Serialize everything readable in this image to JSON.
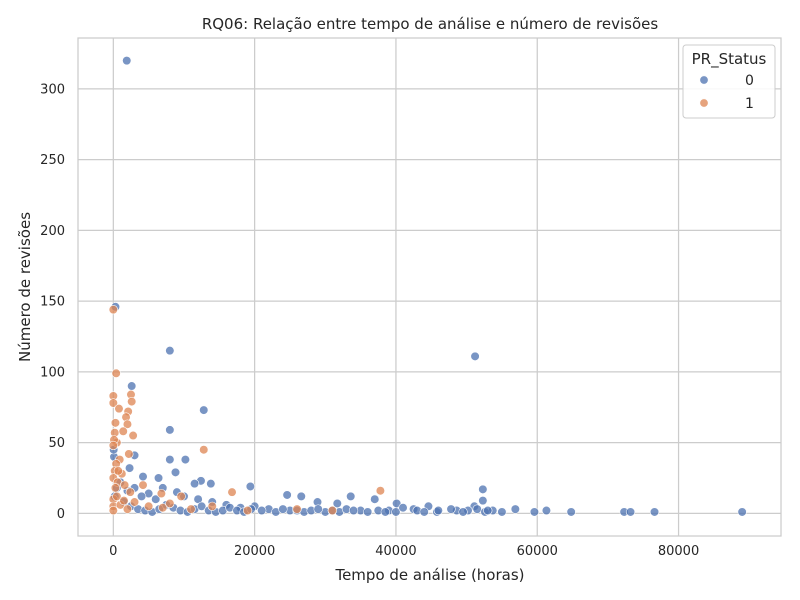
{
  "chart_data": {
    "type": "scatter",
    "title": "RQ06: Relação entre tempo de análise e número de revisões",
    "xlabel": "Tempo de análise (horas)",
    "ylabel": "Número de revisões",
    "xlim": [
      -5000,
      94500
    ],
    "ylim": [
      -16,
      336
    ],
    "xticks": [
      0,
      20000,
      40000,
      60000,
      80000
    ],
    "yticks": [
      0,
      50,
      100,
      150,
      200,
      250,
      300
    ],
    "grid": true,
    "legend": {
      "title": "PR_Status",
      "placement": "top-right"
    },
    "series": [
      {
        "name": "0",
        "color": "#4c72b0",
        "points": [
          [
            1900,
            320
          ],
          [
            300,
            146
          ],
          [
            8000,
            115
          ],
          [
            51200,
            111
          ],
          [
            12800,
            73
          ],
          [
            8000,
            59
          ],
          [
            2600,
            90
          ],
          [
            3000,
            41
          ],
          [
            8000,
            38
          ],
          [
            10200,
            38
          ],
          [
            2300,
            32
          ],
          [
            8800,
            29
          ],
          [
            12400,
            23
          ],
          [
            19400,
            19
          ],
          [
            13800,
            21
          ],
          [
            11500,
            21
          ],
          [
            6400,
            25
          ],
          [
            4200,
            26
          ],
          [
            52300,
            17
          ],
          [
            24600,
            13
          ],
          [
            26600,
            12
          ],
          [
            33600,
            12
          ],
          [
            37000,
            10
          ],
          [
            31700,
            7
          ],
          [
            28900,
            8
          ],
          [
            40100,
            7
          ],
          [
            44600,
            5
          ],
          [
            52300,
            9
          ],
          [
            51100,
            5
          ],
          [
            56900,
            3
          ],
          [
            59600,
            1
          ],
          [
            61300,
            2
          ],
          [
            64800,
            1
          ],
          [
            72300,
            1
          ],
          [
            73200,
            1
          ],
          [
            76600,
            1
          ],
          [
            89000,
            1
          ],
          [
            48600,
            2
          ],
          [
            50200,
            2
          ],
          [
            47800,
            3
          ],
          [
            45800,
            1
          ],
          [
            53700,
            2
          ],
          [
            55000,
            1
          ],
          [
            42500,
            3
          ],
          [
            39000,
            2
          ],
          [
            35000,
            2
          ],
          [
            30000,
            1
          ],
          [
            25000,
            2
          ],
          [
            22000,
            3
          ],
          [
            20000,
            5
          ],
          [
            18000,
            4
          ],
          [
            16000,
            6
          ],
          [
            14000,
            8
          ],
          [
            12000,
            10
          ],
          [
            10000,
            12
          ],
          [
            9000,
            15
          ],
          [
            7000,
            18
          ],
          [
            6000,
            10
          ],
          [
            5000,
            14
          ],
          [
            4000,
            12
          ],
          [
            3000,
            18
          ],
          [
            2000,
            16
          ],
          [
            1000,
            22
          ],
          [
            500,
            18
          ],
          [
            200,
            12
          ],
          [
            100,
            40
          ],
          [
            50,
            45
          ],
          [
            1500,
            8
          ],
          [
            2500,
            5
          ],
          [
            3500,
            3
          ],
          [
            4500,
            2
          ],
          [
            5500,
            1
          ],
          [
            6500,
            3
          ],
          [
            7500,
            6
          ],
          [
            8500,
            4
          ],
          [
            9500,
            2
          ],
          [
            10500,
            1
          ],
          [
            11500,
            3
          ],
          [
            12500,
            5
          ],
          [
            13500,
            2
          ],
          [
            14500,
            1
          ],
          [
            15500,
            2
          ],
          [
            16500,
            4
          ],
          [
            17500,
            2
          ],
          [
            18500,
            1
          ],
          [
            19500,
            3
          ],
          [
            21000,
            2
          ],
          [
            23000,
            1
          ],
          [
            24000,
            3
          ],
          [
            26000,
            2
          ],
          [
            27000,
            1
          ],
          [
            28000,
            2
          ],
          [
            29000,
            3
          ],
          [
            31000,
            2
          ],
          [
            32000,
            1
          ],
          [
            33000,
            3
          ],
          [
            34000,
            2
          ],
          [
            36000,
            1
          ],
          [
            37500,
            2
          ],
          [
            38500,
            1
          ],
          [
            40000,
            1
          ],
          [
            41000,
            4
          ],
          [
            43000,
            2
          ],
          [
            44000,
            1
          ],
          [
            46000,
            2
          ],
          [
            49500,
            1
          ],
          [
            51500,
            3
          ],
          [
            52600,
            1
          ],
          [
            53000,
            2
          ]
        ]
      },
      {
        "name": "1",
        "color": "#dd8452",
        "points": [
          [
            0,
            144
          ],
          [
            400,
            99
          ],
          [
            2500,
            84
          ],
          [
            2600,
            79
          ],
          [
            0,
            83
          ],
          [
            0,
            78
          ],
          [
            800,
            74
          ],
          [
            2100,
            72
          ],
          [
            1800,
            68
          ],
          [
            2000,
            63
          ],
          [
            300,
            64
          ],
          [
            200,
            57
          ],
          [
            1400,
            58
          ],
          [
            2800,
            55
          ],
          [
            500,
            50
          ],
          [
            100,
            52
          ],
          [
            0,
            48
          ],
          [
            12800,
            45
          ],
          [
            2200,
            42
          ],
          [
            900,
            38
          ],
          [
            400,
            35
          ],
          [
            200,
            30
          ],
          [
            1200,
            28
          ],
          [
            0,
            25
          ],
          [
            600,
            22
          ],
          [
            1600,
            20
          ],
          [
            300,
            18
          ],
          [
            2400,
            15
          ],
          [
            4200,
            20
          ],
          [
            6800,
            14
          ],
          [
            9600,
            12
          ],
          [
            16800,
            15
          ],
          [
            37800,
            16
          ],
          [
            0,
            10
          ],
          [
            0,
            5
          ],
          [
            0,
            2
          ],
          [
            1000,
            6
          ],
          [
            2000,
            3
          ],
          [
            3000,
            8
          ],
          [
            5000,
            5
          ],
          [
            7000,
            4
          ],
          [
            8000,
            7
          ],
          [
            11000,
            3
          ],
          [
            14000,
            5
          ],
          [
            19000,
            2
          ],
          [
            26000,
            3
          ],
          [
            31000,
            2
          ],
          [
            500,
            12
          ],
          [
            1500,
            9
          ],
          [
            700,
            30
          ]
        ]
      }
    ]
  }
}
